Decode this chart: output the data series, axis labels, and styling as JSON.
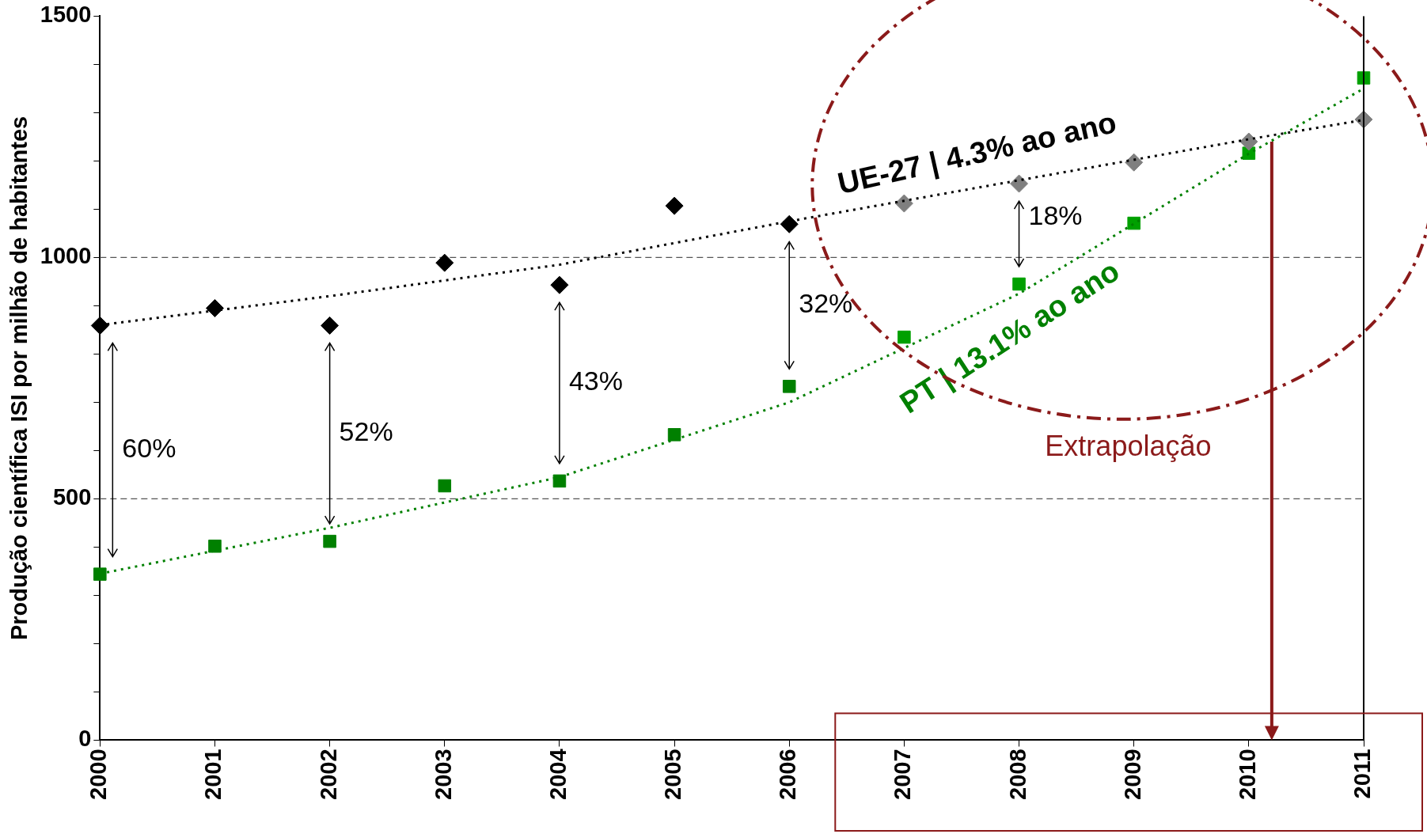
{
  "chart_data": {
    "type": "scatter",
    "ylabel": "Produção científica ISI por milhão de habitantes",
    "xlim": [
      2000,
      2011
    ],
    "xticks": [
      2000,
      2001,
      2002,
      2003,
      2004,
      2005,
      2006,
      2007,
      2008,
      2009,
      2010,
      2011
    ],
    "ylim": [
      0,
      1500
    ],
    "yticks": [
      0,
      {
        "value": 100,
        "label": null
      },
      {
        "value": 200,
        "label": null
      },
      {
        "value": 300,
        "label": null
      },
      {
        "value": 400,
        "label": null
      },
      500,
      {
        "value": 600,
        "label": null
      },
      {
        "value": 700,
        "label": null
      },
      {
        "value": 800,
        "label": null
      },
      {
        "value": 900,
        "label": null
      },
      1000,
      {
        "value": 1100,
        "label": null
      },
      {
        "value": 1200,
        "label": null
      },
      {
        "value": 1300,
        "label": null
      },
      {
        "value": 1400,
        "label": null
      },
      1500
    ],
    "grid": "y",
    "legend": false,
    "series": [
      {
        "type": "line",
        "name": "UE-27 | 4.3% ao ano",
        "color": "#000000",
        "line_style": "dotted",
        "marker": "none",
        "x": [
          2000,
          2002,
          2004,
          2006,
          2008,
          2010,
          2011
        ],
        "values": [
          860,
          920,
          985,
          1075,
          1160,
          1245,
          1285
        ]
      },
      {
        "type": "line",
        "name": "PT | 13.1% ao ano",
        "color": "#008000",
        "line_style": "dotted",
        "marker": "none",
        "x": [
          2000,
          2002,
          2004,
          2006,
          2008,
          2010,
          2011
        ],
        "values": [
          345,
          440,
          545,
          700,
          925,
          1215,
          1350
        ]
      },
      {
        "color": "#000000",
        "marker": "diamond",
        "x": [
          2000,
          2001,
          2002,
          2003,
          2004,
          2005,
          2006
        ],
        "values": [
          859,
          895,
          859,
          989,
          943,
          1107,
          1069
        ]
      },
      {
        "color": "#7f7f7f",
        "marker": "diamond",
        "x": [
          2007,
          2008,
          2009,
          2010,
          2011
        ],
        "values": [
          1112,
          1153,
          1197,
          1240,
          1286
        ]
      },
      {
        "color": "#008000",
        "marker": "square",
        "x": [
          2000,
          2001,
          2002,
          2003,
          2004,
          2005,
          2006
        ],
        "values": [
          344,
          402,
          412,
          527,
          537,
          633,
          733
        ]
      },
      {
        "color": "#00a000",
        "marker": "square",
        "x": [
          2007,
          2008,
          2009,
          2010,
          2011
        ],
        "values": [
          835,
          945,
          1071,
          1216,
          1372
        ]
      }
    ],
    "ref_lines": [
      {
        "axis": "x",
        "value": 2010.2,
        "color": "#8b1a1a"
      }
    ],
    "annotations": [
      "60%",
      "52%",
      "43%",
      "32%",
      "18%",
      "Extrapolação"
    ]
  }
}
